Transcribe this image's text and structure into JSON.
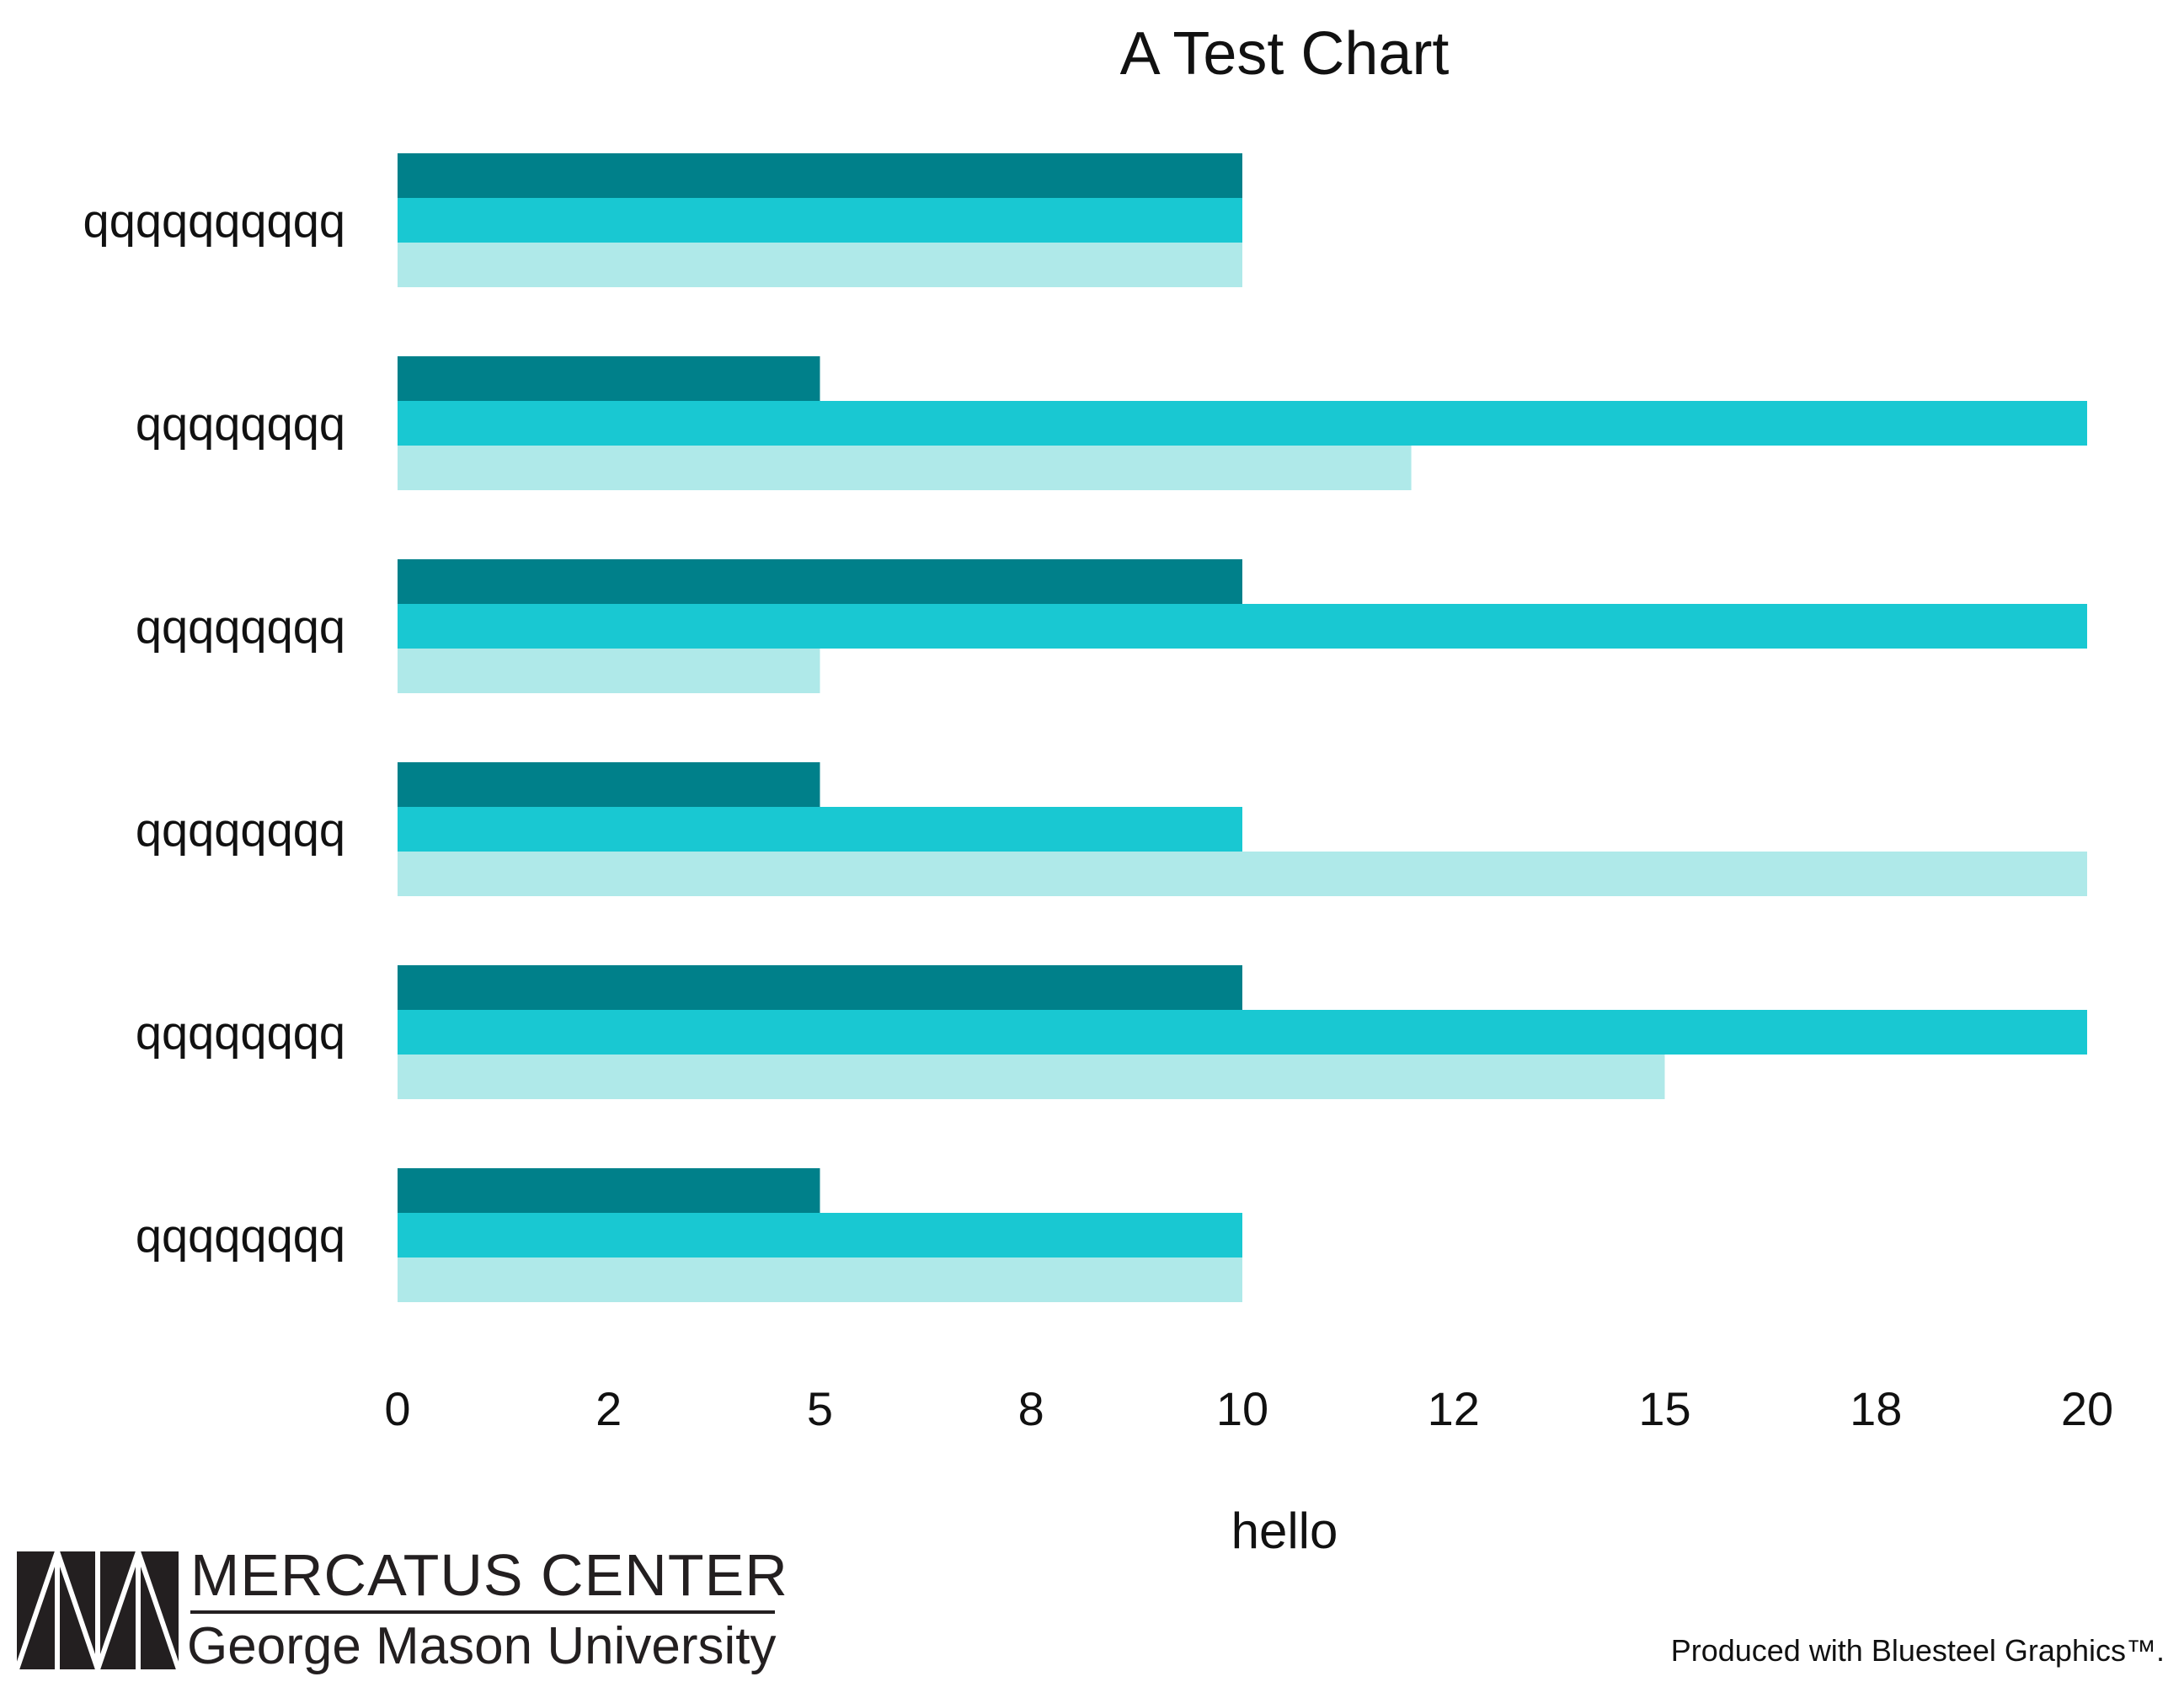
{
  "chart_data": {
    "type": "bar",
    "orientation": "horizontal",
    "title": "A Test Chart",
    "xlabel": "hello",
    "ylabel": "",
    "categories": [
      "qqqqqqqqqq",
      "qqqqqqqq",
      "qqqqqqqq",
      "qqqqqqqq",
      "qqqqqqqq",
      "qqqqqqqq"
    ],
    "x_tick_labels": [
      "0",
      "2",
      "5",
      "8",
      "10",
      "12",
      "15",
      "18",
      "20"
    ],
    "xlim": [
      0,
      20
    ],
    "grid": false,
    "legend": "none",
    "series": [
      {
        "color": "#00808a",
        "values": [
          10,
          5,
          10,
          5,
          10,
          5
        ]
      },
      {
        "color": "#19c8d2",
        "values": [
          10,
          20,
          20,
          10,
          20,
          10
        ]
      },
      {
        "color": "#afe9e9",
        "values": [
          10,
          12,
          5,
          20,
          15,
          10
        ]
      }
    ]
  },
  "branding": {
    "org_name": "MERCATUS CENTER",
    "org_sub": "George Mason University",
    "credit": "Produced with Bluesteel Graphics™."
  }
}
